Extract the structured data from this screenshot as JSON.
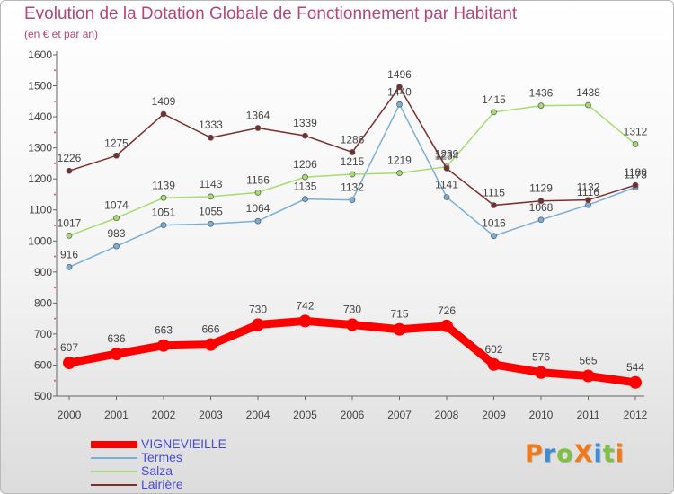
{
  "title": "Evolution de la Dotation Globale de Fonctionnement par Habitant",
  "subtitle": "(en € et par an)",
  "logo": {
    "text": "ProXiti",
    "letter_colors": [
      "#f07a1a",
      "#3b8ed6",
      "#7cc143",
      "#f07a1a",
      "#3b8ed6",
      "#7cc143",
      "#f07a1a"
    ]
  },
  "chart_data": {
    "type": "line",
    "title": "Evolution de la Dotation Globale de Fonctionnement par Habitant",
    "subtitle": "(en € et par an)",
    "x": [
      "2000",
      "2001",
      "2002",
      "2003",
      "2004",
      "2005",
      "2006",
      "2007",
      "2008",
      "2009",
      "2010",
      "2011",
      "2012"
    ],
    "y_ticks": [
      "500",
      "600",
      "700",
      "800",
      "900",
      "1000",
      "1100",
      "1200",
      "1300",
      "1400",
      "1500",
      "1600"
    ],
    "ylim": [
      500,
      1600
    ],
    "grid": false,
    "legend_position": "bottom-left",
    "series": [
      {
        "name": "VIGNEVIEILLE",
        "color": "#ff0000",
        "highlight": true,
        "values": [
          607,
          636,
          663,
          666,
          730,
          742,
          730,
          715,
          726,
          602,
          576,
          565,
          544
        ],
        "labels": [
          "607",
          "636",
          "663",
          "666",
          "730",
          "742",
          "730",
          "715",
          "726",
          "602",
          "576",
          "565",
          "544"
        ]
      },
      {
        "name": "Termes",
        "color": "#7aaed6",
        "values": [
          916,
          983,
          1051,
          1055,
          1064,
          1135,
          1132,
          1440,
          1141,
          1016,
          1068,
          1116,
          1173
        ],
        "labels": [
          "916",
          "983",
          "1051",
          "1055",
          "1064",
          "1135",
          "1132",
          "1440",
          "1141",
          "1016",
          "1068",
          "1116",
          "1173"
        ]
      },
      {
        "name": "Salza",
        "color": "#a6dc6f",
        "values": [
          1017,
          1074,
          1139,
          1143,
          1156,
          1206,
          1215,
          1219,
          1239,
          1415,
          1436,
          1438,
          1312
        ],
        "labels": [
          "1017",
          "1074",
          "1139",
          "1143",
          "1156",
          "1206",
          "1215",
          "1219",
          "1239",
          "1415",
          "1436",
          "1438",
          "1312"
        ]
      },
      {
        "name": "Lairière",
        "color": "#7b2d2d",
        "values": [
          1226,
          1275,
          1409,
          1333,
          1364,
          1339,
          1286,
          1496,
          1234,
          1115,
          1129,
          1132,
          1180
        ],
        "labels": [
          "1226",
          "1275",
          "1409",
          "1333",
          "1364",
          "1339",
          "1286",
          "1496",
          "1234",
          "1115",
          "1129",
          "1132",
          "1180"
        ]
      }
    ]
  }
}
